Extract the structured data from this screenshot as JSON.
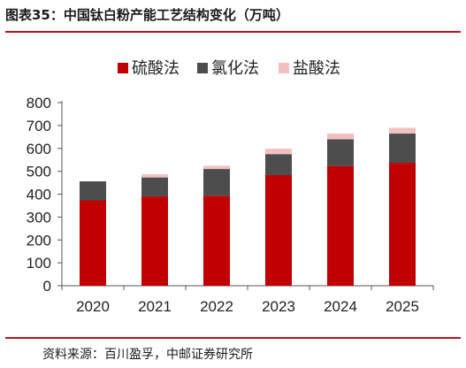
{
  "figure": {
    "title": "图表35：中国钛白粉产能工艺结构变化（万吨）",
    "source": "资料来源：百川盈孚，中邮证券研究所"
  },
  "colors": {
    "accent_rule": "#b8121b",
    "axis": "#555555"
  },
  "chart_data": {
    "type": "bar",
    "stacked": true,
    "title": "",
    "xlabel": "",
    "ylabel": "",
    "categories": [
      "2020",
      "2021",
      "2022",
      "2023",
      "2024",
      "2025"
    ],
    "series": [
      {
        "name": "硫酸法",
        "color": "#c00000",
        "values": [
          373,
          390,
          393,
          483,
          523,
          537
        ]
      },
      {
        "name": "氯化法",
        "color": "#4d4d4d",
        "values": [
          83,
          83,
          117,
          92,
          117,
          128
        ]
      },
      {
        "name": "盐酸法",
        "color": "#f2c0c0",
        "values": [
          0,
          14,
          14,
          24,
          25,
          25
        ]
      }
    ],
    "ylim": [
      0,
      800
    ],
    "yticks": [
      0,
      100,
      200,
      300,
      400,
      500,
      600,
      700,
      800
    ],
    "grid": false,
    "legend_position": "top-center"
  }
}
